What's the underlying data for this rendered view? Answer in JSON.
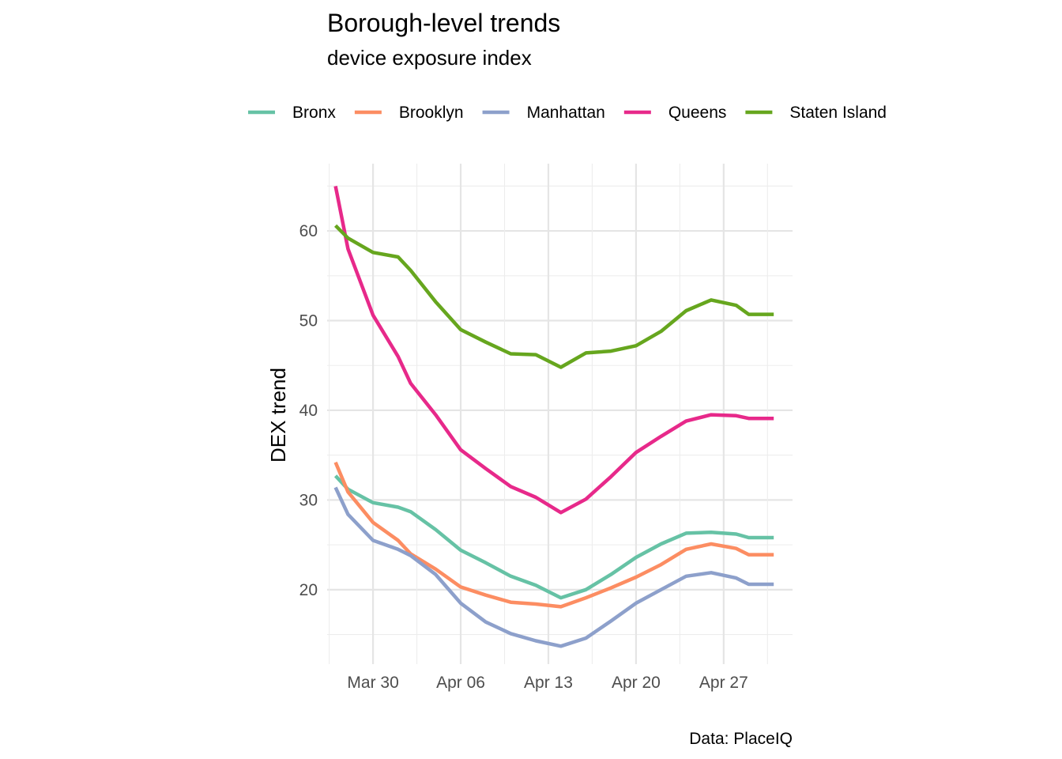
{
  "chart_data": {
    "type": "line",
    "title": "Borough-level trends",
    "subtitle": "device exposure index",
    "xlabel": "",
    "ylabel": "DEX trend",
    "caption": "Data: PlaceIQ",
    "legend_position": "top",
    "grid": true,
    "x": [
      "2020-03-27",
      "2020-03-28",
      "2020-03-30",
      "2020-04-01",
      "2020-04-02",
      "2020-04-04",
      "2020-04-06",
      "2020-04-08",
      "2020-04-10",
      "2020-04-12",
      "2020-04-14",
      "2020-04-16",
      "2020-04-18",
      "2020-04-20",
      "2020-04-22",
      "2020-04-24",
      "2020-04-26",
      "2020-04-28",
      "2020-04-29",
      "2020-05-01"
    ],
    "x_ticks": [
      {
        "date": "2020-03-30",
        "label": "Mar 30"
      },
      {
        "date": "2020-04-06",
        "label": "Apr 06"
      },
      {
        "date": "2020-04-13",
        "label": "Apr 13"
      },
      {
        "date": "2020-04-20",
        "label": "Apr 20"
      },
      {
        "date": "2020-04-27",
        "label": "Apr 27"
      }
    ],
    "xlim": [
      "2020-03-26T08:00",
      "2020-05-02T12:00"
    ],
    "y_ticks": [
      20,
      30,
      40,
      50,
      60
    ],
    "ylim": [
      11.7,
      67.5
    ],
    "series": [
      {
        "name": "Bronx",
        "color": "#66c2a5",
        "values": [
          32.7,
          31.2,
          29.7,
          29.2,
          28.7,
          26.7,
          24.4,
          23.0,
          21.5,
          20.5,
          19.1,
          20.0,
          21.7,
          23.6,
          25.1,
          26.3,
          26.4,
          26.2,
          25.8,
          25.8
        ]
      },
      {
        "name": "Brooklyn",
        "color": "#fc8d62",
        "values": [
          34.2,
          30.9,
          27.5,
          25.5,
          24.0,
          22.3,
          20.3,
          19.4,
          18.6,
          18.4,
          18.1,
          19.1,
          20.2,
          21.4,
          22.8,
          24.5,
          25.1,
          24.6,
          23.9,
          23.9
        ]
      },
      {
        "name": "Manhattan",
        "color": "#8da0cb",
        "values": [
          31.4,
          28.4,
          25.5,
          24.5,
          23.8,
          21.7,
          18.5,
          16.4,
          15.1,
          14.3,
          13.7,
          14.6,
          16.5,
          18.5,
          20.0,
          21.5,
          21.9,
          21.3,
          20.6,
          20.6
        ]
      },
      {
        "name": "Queens",
        "color": "#e7298a",
        "values": [
          65.0,
          58.0,
          50.6,
          46.0,
          43.0,
          39.5,
          35.6,
          33.5,
          31.5,
          30.3,
          28.6,
          30.1,
          32.6,
          35.3,
          37.1,
          38.8,
          39.5,
          39.4,
          39.1,
          39.1
        ]
      },
      {
        "name": "Staten Island",
        "color": "#66a61e",
        "values": [
          60.6,
          59.2,
          57.6,
          57.1,
          55.6,
          52.1,
          49.0,
          47.6,
          46.3,
          46.2,
          44.8,
          46.4,
          46.6,
          47.2,
          48.8,
          51.1,
          52.3,
          51.7,
          50.7,
          50.7
        ]
      }
    ]
  }
}
